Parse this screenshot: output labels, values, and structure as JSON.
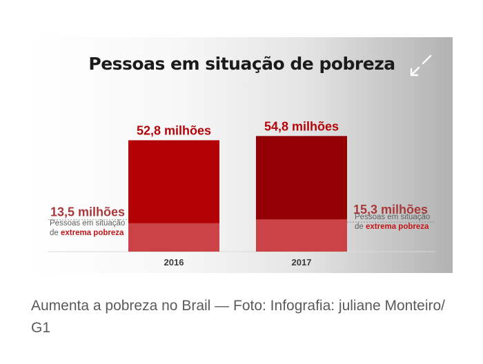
{
  "figure": {
    "title": "Pessoas em situação de pobreza",
    "expand_icon": "expand-arrows-icon"
  },
  "chart_data": {
    "type": "bar",
    "categories": [
      "2016",
      "2017"
    ],
    "series": [
      {
        "name": "",
        "values": [
          52.8,
          54.8
        ],
        "labels": [
          "52,8 milhões",
          "54,8 milhões"
        ]
      },
      {
        "name": "extrema pobreza",
        "values": [
          13.5,
          15.3
        ],
        "labels": [
          "13,5 milhões",
          "15,3 milhões"
        ]
      }
    ],
    "annotation": {
      "prefix": "Pessoas em situação",
      "connector": "de",
      "emphasis": "extrema pobreza"
    },
    "colors": {
      "total_2016": "#b20206",
      "total_2017": "#930004",
      "extreme": "#cb4346",
      "label": "#b2050a",
      "label_extreme": "#a8383a"
    }
  },
  "caption": "Aumenta a pobreza no Brail — Foto: Infografia: juliane Monteiro/ G1"
}
